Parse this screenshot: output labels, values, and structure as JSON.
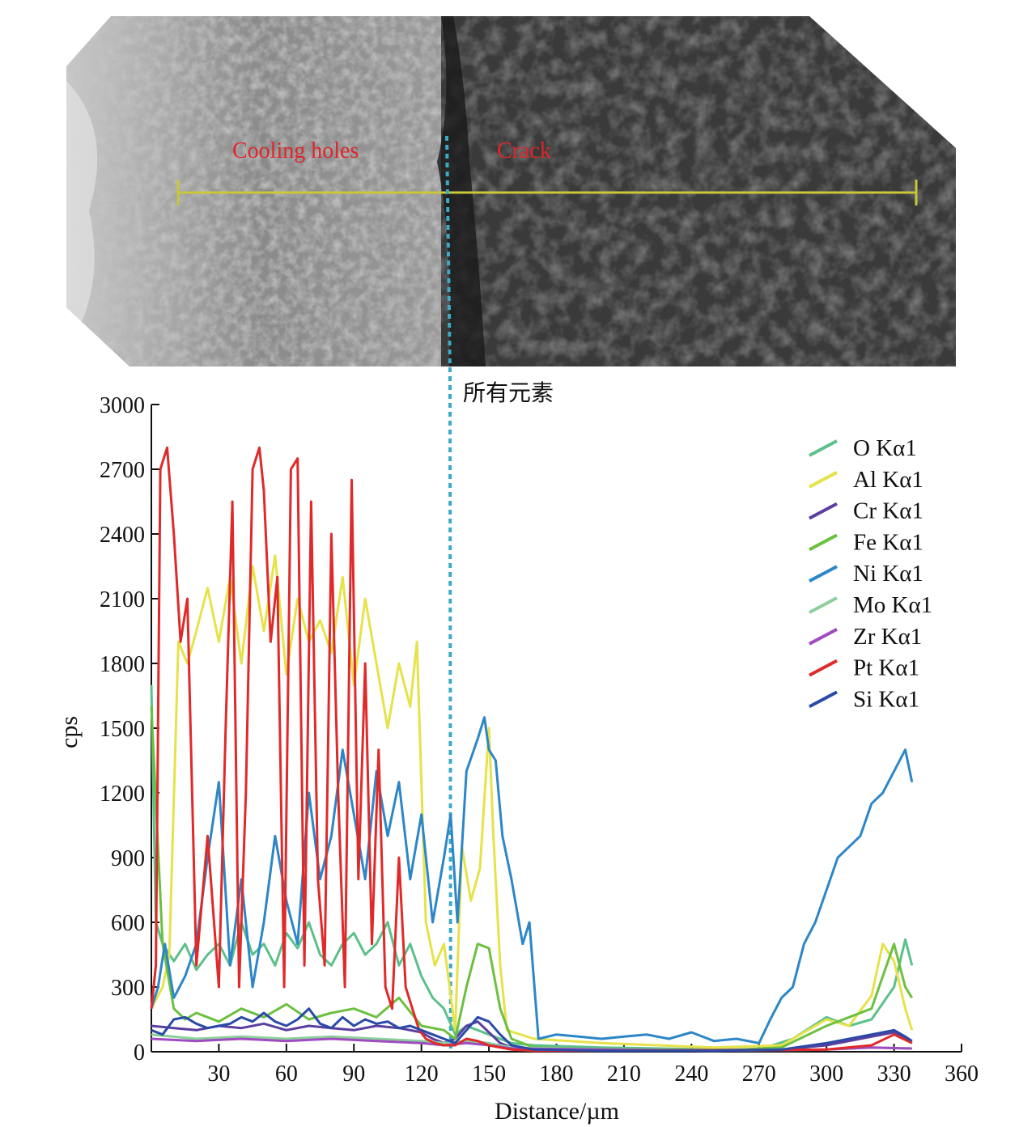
{
  "sem_image": {
    "label_left": "Cooling holes",
    "label_right": "Crack"
  },
  "marker": {
    "label": "所有元素",
    "x": 133
  },
  "colors": {
    "O": "#5cc08a",
    "Al": "#e6e24a",
    "Cr": "#5b3fa0",
    "Fe": "#6cc040",
    "Ni": "#2d86c8",
    "Mo": "#8ccf9a",
    "Zr": "#a04cc0",
    "Pt": "#e02a2a",
    "Si": "#2a4aa8",
    "marker": "#3aaac8",
    "scan_line": "#c8c838"
  },
  "chart_data": {
    "type": "line",
    "xlabel": "Distance/µm",
    "ylabel": "cps",
    "xlim": [
      0,
      360
    ],
    "ylim": [
      0,
      3000
    ],
    "xticks": [
      30,
      60,
      90,
      120,
      150,
      180,
      210,
      240,
      270,
      300,
      330,
      360
    ],
    "yticks": [
      0,
      300,
      600,
      900,
      1200,
      1500,
      1800,
      2100,
      2400,
      2700,
      3000
    ],
    "legend_position": "top-right",
    "series": [
      {
        "name": "O Kα1",
        "key": "O",
        "x": [
          0,
          2,
          5,
          10,
          15,
          20,
          25,
          30,
          35,
          40,
          45,
          50,
          55,
          60,
          65,
          70,
          75,
          80,
          85,
          90,
          95,
          100,
          105,
          110,
          115,
          120,
          125,
          130,
          135,
          140,
          145,
          150,
          155,
          160,
          170,
          200,
          250,
          270,
          285,
          300,
          310,
          320,
          330,
          335,
          338
        ],
        "values": [
          1700,
          600,
          500,
          420,
          500,
          380,
          450,
          500,
          400,
          600,
          450,
          500,
          400,
          550,
          480,
          600,
          450,
          400,
          500,
          550,
          450,
          500,
          600,
          400,
          500,
          350,
          250,
          200,
          80,
          120,
          100,
          80,
          60,
          40,
          30,
          20,
          10,
          10,
          60,
          160,
          120,
          150,
          300,
          520,
          400
        ]
      },
      {
        "name": "Al Kα1",
        "key": "Al",
        "x": [
          0,
          5,
          8,
          12,
          16,
          20,
          25,
          30,
          35,
          40,
          45,
          50,
          55,
          60,
          65,
          70,
          75,
          80,
          85,
          90,
          95,
          100,
          105,
          110,
          115,
          118,
          122,
          126,
          130,
          135,
          138,
          142,
          146,
          150,
          152,
          155,
          158,
          170,
          200,
          250,
          280,
          300,
          310,
          320,
          325,
          330,
          335,
          338
        ],
        "values": [
          200,
          300,
          450,
          1900,
          1800,
          1950,
          2150,
          1900,
          2200,
          1800,
          2250,
          1950,
          2300,
          1750,
          2100,
          1900,
          2000,
          1850,
          2200,
          1700,
          2100,
          1800,
          1500,
          1800,
          1600,
          1900,
          600,
          400,
          500,
          100,
          950,
          700,
          850,
          1500,
          1000,
          400,
          100,
          60,
          40,
          20,
          30,
          150,
          120,
          260,
          500,
          420,
          200,
          100
        ]
      },
      {
        "name": "Cr Kα1",
        "key": "Cr",
        "x": [
          0,
          10,
          20,
          30,
          40,
          50,
          60,
          70,
          80,
          90,
          100,
          110,
          120,
          125,
          130,
          135,
          140,
          145,
          150,
          155,
          160,
          170,
          200,
          250,
          280,
          300,
          320,
          330,
          335,
          338
        ],
        "values": [
          120,
          110,
          100,
          120,
          110,
          130,
          100,
          120,
          110,
          100,
          120,
          110,
          90,
          60,
          40,
          60,
          120,
          140,
          90,
          40,
          20,
          10,
          10,
          5,
          10,
          30,
          70,
          90,
          60,
          40
        ]
      },
      {
        "name": "Fe Kα1",
        "key": "Fe",
        "x": [
          0,
          5,
          10,
          15,
          20,
          30,
          40,
          50,
          60,
          70,
          80,
          90,
          100,
          110,
          120,
          130,
          135,
          140,
          145,
          150,
          155,
          160,
          170,
          200,
          250,
          280,
          300,
          310,
          320,
          325,
          330,
          335,
          338
        ],
        "values": [
          1600,
          500,
          200,
          150,
          180,
          140,
          200,
          160,
          220,
          150,
          180,
          200,
          160,
          250,
          120,
          100,
          60,
          300,
          500,
          480,
          200,
          60,
          20,
          10,
          5,
          20,
          120,
          160,
          200,
          350,
          500,
          300,
          250
        ]
      },
      {
        "name": "Ni Kα1",
        "key": "Ni",
        "x": [
          0,
          3,
          6,
          10,
          15,
          20,
          25,
          30,
          35,
          40,
          45,
          50,
          55,
          60,
          65,
          70,
          75,
          80,
          85,
          90,
          95,
          100,
          105,
          110,
          115,
          120,
          125,
          130,
          133,
          136,
          140,
          145,
          148,
          150,
          153,
          156,
          160,
          165,
          168,
          172,
          180,
          190,
          200,
          210,
          220,
          230,
          240,
          250,
          260,
          270,
          275,
          280,
          285,
          290,
          295,
          300,
          305,
          310,
          315,
          320,
          325,
          330,
          335,
          338
        ],
        "values": [
          200,
          300,
          500,
          250,
          350,
          500,
          900,
          1250,
          400,
          800,
          300,
          600,
          1000,
          700,
          500,
          1200,
          800,
          1000,
          1400,
          1100,
          800,
          1300,
          1000,
          1250,
          800,
          1100,
          600,
          900,
          1100,
          600,
          1300,
          1450,
          1550,
          1400,
          1350,
          1000,
          800,
          500,
          600,
          60,
          80,
          70,
          60,
          70,
          80,
          60,
          90,
          50,
          60,
          40,
          150,
          250,
          300,
          500,
          600,
          750,
          900,
          950,
          1000,
          1150,
          1200,
          1300,
          1400,
          1250
        ]
      },
      {
        "name": "Mo Kα1",
        "key": "Mo",
        "x": [
          0,
          20,
          40,
          60,
          80,
          100,
          120,
          130,
          140,
          150,
          160,
          200,
          250,
          300,
          320,
          338
        ],
        "values": [
          80,
          60,
          70,
          60,
          70,
          60,
          50,
          40,
          50,
          40,
          20,
          10,
          5,
          10,
          20,
          15
        ]
      },
      {
        "name": "Zr Kα1",
        "key": "Zr",
        "x": [
          0,
          20,
          40,
          60,
          80,
          100,
          120,
          130,
          140,
          150,
          160,
          200,
          250,
          300,
          320,
          338
        ],
        "values": [
          60,
          50,
          60,
          50,
          60,
          50,
          40,
          30,
          40,
          30,
          15,
          10,
          5,
          10,
          20,
          15
        ]
      },
      {
        "name": "Pt Kα1",
        "key": "Pt",
        "x": [
          0,
          2,
          4,
          7,
          10,
          13,
          16,
          20,
          25,
          30,
          33,
          36,
          39,
          42,
          45,
          48,
          50,
          53,
          56,
          59,
          62,
          65,
          68,
          71,
          74,
          77,
          80,
          83,
          86,
          89,
          92,
          95,
          98,
          101,
          104,
          107,
          110,
          113,
          116,
          119,
          122,
          126,
          130,
          135,
          140,
          145,
          150,
          160,
          170,
          200,
          300,
          320,
          330,
          338
        ],
        "values": [
          200,
          400,
          2700,
          2800,
          2400,
          1900,
          2100,
          400,
          1000,
          300,
          1500,
          2550,
          300,
          1200,
          2700,
          2800,
          2600,
          1900,
          2200,
          300,
          2700,
          2750,
          400,
          2550,
          800,
          400,
          2400,
          1200,
          300,
          2650,
          800,
          1800,
          500,
          1400,
          300,
          200,
          900,
          300,
          200,
          100,
          60,
          40,
          30,
          30,
          60,
          50,
          30,
          10,
          5,
          5,
          10,
          30,
          80,
          40
        ]
      },
      {
        "name": "Si Kα1",
        "key": "Si",
        "x": [
          0,
          5,
          10,
          15,
          20,
          25,
          30,
          35,
          40,
          45,
          50,
          55,
          60,
          65,
          70,
          75,
          80,
          85,
          90,
          95,
          100,
          105,
          110,
          115,
          120,
          125,
          130,
          135,
          140,
          145,
          150,
          155,
          160,
          170,
          200,
          250,
          280,
          300,
          320,
          330,
          335,
          338
        ],
        "values": [
          100,
          80,
          150,
          160,
          130,
          110,
          120,
          130,
          160,
          140,
          180,
          140,
          120,
          150,
          200,
          130,
          110,
          160,
          120,
          150,
          130,
          140,
          110,
          120,
          100,
          80,
          60,
          40,
          100,
          160,
          140,
          80,
          30,
          10,
          5,
          5,
          10,
          40,
          80,
          100,
          70,
          50
        ]
      }
    ]
  }
}
